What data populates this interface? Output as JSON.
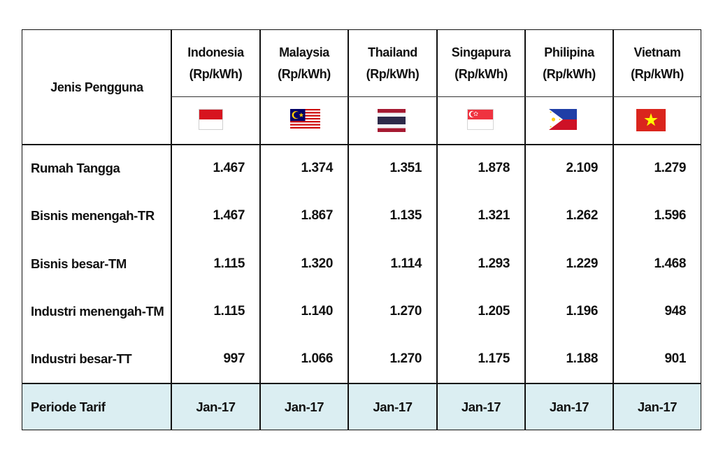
{
  "table": {
    "corner_header": "Jenis Pengguna",
    "columns": [
      {
        "country": "Indonesia",
        "unit": "(Rp/kWh)",
        "flag": "indonesia-flag-icon"
      },
      {
        "country": "Malaysia",
        "unit": "(Rp/kWh)",
        "flag": "malaysia-flag-icon"
      },
      {
        "country": "Thailand",
        "unit": "(Rp/kWh)",
        "flag": "thailand-flag-icon"
      },
      {
        "country": "Singapura",
        "unit": "(Rp/kWh)",
        "flag": "singapore-flag-icon"
      },
      {
        "country": "Philipina",
        "unit": "(Rp/kWh)",
        "flag": "philippines-flag-icon"
      },
      {
        "country": "Vietnam",
        "unit": "(Rp/kWh)",
        "flag": "vietnam-flag-icon"
      }
    ],
    "rows": [
      {
        "label": "Rumah Tangga",
        "values": [
          "1.467",
          "1.374",
          "1.351",
          "1.878",
          "2.109",
          "1.279"
        ]
      },
      {
        "label": "Bisnis menengah-TR",
        "values": [
          "1.467",
          "1.867",
          "1.135",
          "1.321",
          "1.262",
          "1.596"
        ]
      },
      {
        "label": "Bisnis besar-TM",
        "values": [
          "1.115",
          "1.320",
          "1.114",
          "1.293",
          "1.229",
          "1.468"
        ]
      },
      {
        "label": "Industri menengah-TM",
        "values": [
          "1.115",
          "1.140",
          "1.270",
          "1.205",
          "1.196",
          "948"
        ]
      },
      {
        "label": "Industri besar-TT",
        "values": [
          "997",
          "1.066",
          "1.270",
          "1.175",
          "1.188",
          "901"
        ]
      }
    ],
    "footer": {
      "label": "Periode Tarif",
      "values": [
        "Jan-17",
        "Jan-17",
        "Jan-17",
        "Jan-17",
        "Jan-17",
        "Jan-17"
      ]
    },
    "colors": {
      "footer_background": "#dbeef2",
      "border": "#111111"
    }
  }
}
